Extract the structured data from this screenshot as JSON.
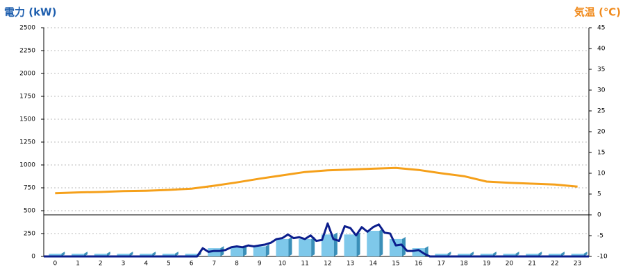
{
  "chart_data": {
    "type": "combo",
    "y_title": "電力 (kW)",
    "y2_title": "気温 (℃)",
    "categories": [
      0,
      1,
      2,
      3,
      4,
      5,
      6,
      7,
      8,
      9,
      10,
      11,
      12,
      13,
      14,
      15,
      16,
      17,
      18,
      19,
      20,
      21,
      22,
      23
    ],
    "xlim": [
      -0.5,
      23.5
    ],
    "ylim": [
      0,
      2500
    ],
    "yticks": [
      0,
      250,
      500,
      750,
      1000,
      1250,
      1500,
      1750,
      2000,
      2250,
      2500
    ],
    "y2lim": [
      -10,
      45
    ],
    "y2ticks": [
      -10,
      -5,
      0,
      5,
      10,
      15,
      20,
      25,
      30,
      35,
      40,
      45
    ],
    "grid": true,
    "series": [
      {
        "type": "bar",
        "color": "#7ec8ea",
        "values": [
          30,
          30,
          30,
          30,
          30,
          30,
          30,
          90,
          100,
          110,
          190,
          190,
          240,
          240,
          280,
          190,
          90,
          30,
          30,
          30,
          30,
          30,
          30,
          30
        ]
      },
      {
        "type": "line",
        "color": "#0b1d8c",
        "x": [
          -0.5,
          0,
          1,
          2,
          3,
          4,
          5,
          6,
          6.25,
          6.5,
          6.75,
          7,
          7.25,
          7.5,
          7.75,
          8,
          8.25,
          8.5,
          8.75,
          9,
          9.25,
          9.5,
          9.75,
          10,
          10.25,
          10.5,
          10.75,
          11,
          11.25,
          11.5,
          11.75,
          12,
          12.25,
          12.5,
          12.75,
          13,
          13.25,
          13.5,
          13.75,
          14,
          14.25,
          14.5,
          14.75,
          15,
          15.25,
          15.5,
          15.75,
          16,
          16.25,
          16.5,
          17,
          18,
          19,
          20,
          21,
          22,
          23,
          23.5
        ],
        "values": [
          0,
          0,
          0,
          0,
          0,
          0,
          0,
          0,
          0,
          90,
          50,
          60,
          60,
          70,
          100,
          110,
          100,
          120,
          110,
          120,
          130,
          150,
          190,
          200,
          240,
          200,
          210,
          190,
          230,
          170,
          180,
          360,
          190,
          170,
          330,
          310,
          230,
          320,
          270,
          320,
          350,
          260,
          250,
          120,
          130,
          60,
          60,
          70,
          30,
          0,
          0,
          0,
          0,
          0,
          0,
          0,
          0,
          0
        ]
      },
      {
        "type": "line",
        "axis": "y2",
        "color": "#f5a01a",
        "values": [
          5.2,
          5.4,
          5.5,
          5.7,
          5.8,
          6.0,
          6.3,
          7.0,
          7.8,
          8.7,
          9.5,
          10.3,
          10.7,
          10.9,
          11.1,
          11.3,
          10.8,
          10.0,
          9.3,
          8.0,
          7.7,
          7.5,
          7.3,
          6.8
        ]
      }
    ]
  }
}
